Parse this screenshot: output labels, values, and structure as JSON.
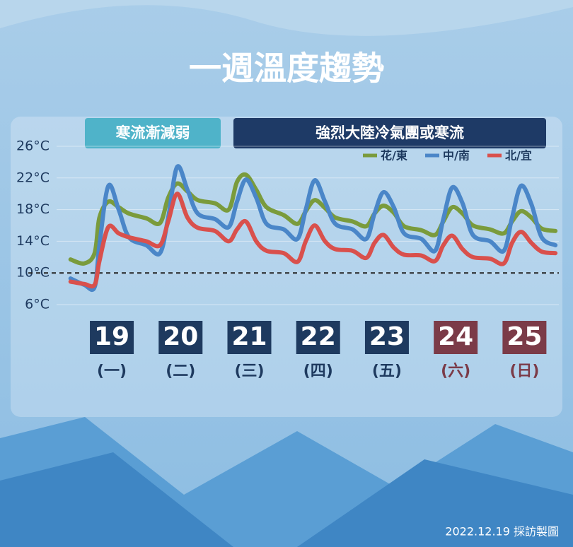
{
  "chart_data": {
    "type": "line",
    "title": "一週溫度趨勢",
    "annotations": [
      {
        "text": "寒流漸減弱",
        "color": "#4fb3c9"
      },
      {
        "text": "強烈大陸冷氣團或寒流",
        "color": "#1e3a66"
      }
    ],
    "source": "2022.12.19 採訪製圖",
    "x": [
      18.4,
      18.6,
      18.75,
      18.82,
      18.95,
      19.1,
      19.25,
      19.5,
      19.7,
      19.82,
      19.95,
      20.1,
      20.25,
      20.5,
      20.7,
      20.82,
      20.95,
      21.1,
      21.25,
      21.5,
      21.7,
      21.82,
      21.95,
      22.1,
      22.25,
      22.5,
      22.7,
      22.82,
      22.95,
      23.1,
      23.25,
      23.5,
      23.7,
      23.82,
      23.95,
      24.1,
      24.25,
      24.5,
      24.7,
      24.82,
      24.95,
      25.1,
      25.25,
      25.45
    ],
    "series": [
      {
        "name": "花/東",
        "color": "#7a9b3c",
        "values": [
          11.7,
          11.2,
          12.5,
          17.0,
          19.0,
          18.3,
          17.5,
          16.9,
          16.3,
          19.5,
          21.3,
          20.3,
          19.2,
          18.8,
          18.0,
          21.5,
          22.4,
          20.5,
          18.3,
          17.3,
          16.2,
          17.8,
          19.2,
          18.2,
          17.0,
          16.5,
          15.9,
          17.5,
          18.5,
          17.6,
          15.9,
          15.4,
          14.8,
          16.5,
          18.3,
          17.5,
          16.0,
          15.5,
          15.0,
          16.5,
          17.8,
          17.0,
          15.6,
          15.3
        ]
      },
      {
        "name": "中/南",
        "color": "#4a86c8",
        "values": [
          9.3,
          8.5,
          8.2,
          13.5,
          21.0,
          18.0,
          14.5,
          13.5,
          12.5,
          17.0,
          23.4,
          20.5,
          17.5,
          16.8,
          15.8,
          19.0,
          21.8,
          19.5,
          16.2,
          15.5,
          14.3,
          18.0,
          21.7,
          19.0,
          16.2,
          15.5,
          14.3,
          17.5,
          20.2,
          18.3,
          15.0,
          14.3,
          12.8,
          16.8,
          20.8,
          18.8,
          14.8,
          14.0,
          12.8,
          17.0,
          21.0,
          18.7,
          14.5,
          13.5
        ]
      },
      {
        "name": "北/宜",
        "color": "#d9504c",
        "values": [
          8.9,
          8.6,
          8.5,
          11.5,
          15.8,
          15.0,
          14.5,
          14.0,
          13.5,
          16.5,
          20.0,
          17.0,
          15.7,
          15.3,
          14.0,
          15.5,
          16.5,
          14.0,
          12.8,
          12.5,
          11.4,
          14.0,
          16.0,
          14.0,
          13.0,
          12.8,
          11.9,
          13.8,
          14.8,
          13.2,
          12.3,
          12.2,
          11.5,
          13.5,
          14.7,
          13.0,
          12.0,
          11.8,
          11.2,
          13.8,
          15.2,
          13.8,
          12.7,
          12.5
        ]
      }
    ],
    "xlim": [
      18.3,
      25.5
    ],
    "xticks": [
      19,
      20,
      21,
      22,
      23,
      24,
      25
    ],
    "weekdays": [
      "(一)",
      "(二)",
      "(三)",
      "(四)",
      "(五)",
      "(六)",
      "(日)"
    ],
    "xtick_colors": [
      "#1e3a5f",
      "#1e3a5f",
      "#1e3a5f",
      "#1e3a5f",
      "#1e3a5f",
      "#7b3b48",
      "#7b3b48"
    ],
    "ylim": [
      6,
      26
    ],
    "yticks": [
      {
        "value": 6,
        "label": "6°C"
      },
      {
        "value": 10,
        "label": "10°C"
      },
      {
        "value": 14,
        "label": "14°C"
      },
      {
        "value": 18,
        "label": "18°C"
      },
      {
        "value": 22,
        "label": "22°C"
      },
      {
        "value": 26,
        "label": "26°C"
      }
    ],
    "ref_line": 10,
    "grid": true
  }
}
